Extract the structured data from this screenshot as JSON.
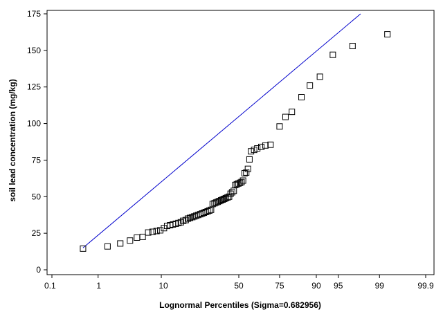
{
  "chart_data": {
    "type": "scatter",
    "xlabel": "Lognormal Percentiles (Sigma=0.682956)",
    "ylabel": "soil lead concentration (mg/kg)",
    "x_scale": "normal-probability",
    "x_ticks": [
      0.1,
      1,
      10,
      50,
      75,
      90,
      95,
      99,
      99.9
    ],
    "x_tick_labels": [
      "0.1",
      "1",
      "10",
      "50",
      "75",
      "90",
      "95",
      "99",
      "99.9"
    ],
    "ylim": [
      0,
      175
    ],
    "y_ticks": [
      0,
      25,
      50,
      75,
      100,
      125,
      150,
      175
    ],
    "grid": false,
    "legend": "none",
    "colors": {
      "points": "#000000",
      "fit_line": "#0000cc",
      "frame": "#000000"
    },
    "marker": "open-square",
    "points": [
      {
        "x": 0.5,
        "y": 14.5
      },
      {
        "x": 1.5,
        "y": 16
      },
      {
        "x": 2.5,
        "y": 18
      },
      {
        "x": 3.6,
        "y": 20
      },
      {
        "x": 4.6,
        "y": 22
      },
      {
        "x": 5.6,
        "y": 22.5
      },
      {
        "x": 6.7,
        "y": 25.5
      },
      {
        "x": 7.7,
        "y": 26
      },
      {
        "x": 8.7,
        "y": 26.5
      },
      {
        "x": 9.7,
        "y": 27
      },
      {
        "x": 10.8,
        "y": 28.5
      },
      {
        "x": 11.8,
        "y": 30
      },
      {
        "x": 12.8,
        "y": 30.5
      },
      {
        "x": 13.8,
        "y": 31
      },
      {
        "x": 14.9,
        "y": 31.5
      },
      {
        "x": 15.9,
        "y": 32
      },
      {
        "x": 16.9,
        "y": 32.5
      },
      {
        "x": 17.9,
        "y": 33.5
      },
      {
        "x": 19.0,
        "y": 34
      },
      {
        "x": 20.0,
        "y": 35
      },
      {
        "x": 21.0,
        "y": 35.5
      },
      {
        "x": 22.1,
        "y": 36
      },
      {
        "x": 23.1,
        "y": 36.5
      },
      {
        "x": 24.1,
        "y": 37
      },
      {
        "x": 25.1,
        "y": 37.5
      },
      {
        "x": 26.2,
        "y": 38
      },
      {
        "x": 27.2,
        "y": 38.5
      },
      {
        "x": 28.2,
        "y": 39
      },
      {
        "x": 29.2,
        "y": 39.5
      },
      {
        "x": 30.3,
        "y": 40
      },
      {
        "x": 31.3,
        "y": 40.5
      },
      {
        "x": 32.3,
        "y": 41
      },
      {
        "x": 33.3,
        "y": 45
      },
      {
        "x": 34.4,
        "y": 45.5
      },
      {
        "x": 35.4,
        "y": 46
      },
      {
        "x": 36.4,
        "y": 46.5
      },
      {
        "x": 37.4,
        "y": 47
      },
      {
        "x": 38.5,
        "y": 47.5
      },
      {
        "x": 39.5,
        "y": 48
      },
      {
        "x": 40.5,
        "y": 48.5
      },
      {
        "x": 41.5,
        "y": 49
      },
      {
        "x": 42.6,
        "y": 49.5
      },
      {
        "x": 43.6,
        "y": 50
      },
      {
        "x": 44.6,
        "y": 52
      },
      {
        "x": 45.6,
        "y": 53
      },
      {
        "x": 46.7,
        "y": 54
      },
      {
        "x": 47.7,
        "y": 58
      },
      {
        "x": 48.7,
        "y": 58.5
      },
      {
        "x": 49.7,
        "y": 59
      },
      {
        "x": 50.8,
        "y": 59.5
      },
      {
        "x": 51.8,
        "y": 60
      },
      {
        "x": 52.8,
        "y": 61
      },
      {
        "x": 53.8,
        "y": 66
      },
      {
        "x": 54.9,
        "y": 66.5
      },
      {
        "x": 56.0,
        "y": 69
      },
      {
        "x": 57.0,
        "y": 75.5
      },
      {
        "x": 58.0,
        "y": 81
      },
      {
        "x": 60.0,
        "y": 82
      },
      {
        "x": 62.0,
        "y": 83
      },
      {
        "x": 64.5,
        "y": 84
      },
      {
        "x": 67.0,
        "y": 85
      },
      {
        "x": 70.0,
        "y": 85.5
      },
      {
        "x": 75.0,
        "y": 98
      },
      {
        "x": 78.0,
        "y": 104.5
      },
      {
        "x": 81.0,
        "y": 108
      },
      {
        "x": 85.0,
        "y": 118
      },
      {
        "x": 88.0,
        "y": 126
      },
      {
        "x": 91.0,
        "y": 132
      },
      {
        "x": 94.0,
        "y": 147
      },
      {
        "x": 97.0,
        "y": 153
      },
      {
        "x": 99.3,
        "y": 161
      }
    ],
    "fit_line": [
      {
        "x": 0.5,
        "y": 15
      },
      {
        "x": 97.8,
        "y": 175
      }
    ]
  }
}
